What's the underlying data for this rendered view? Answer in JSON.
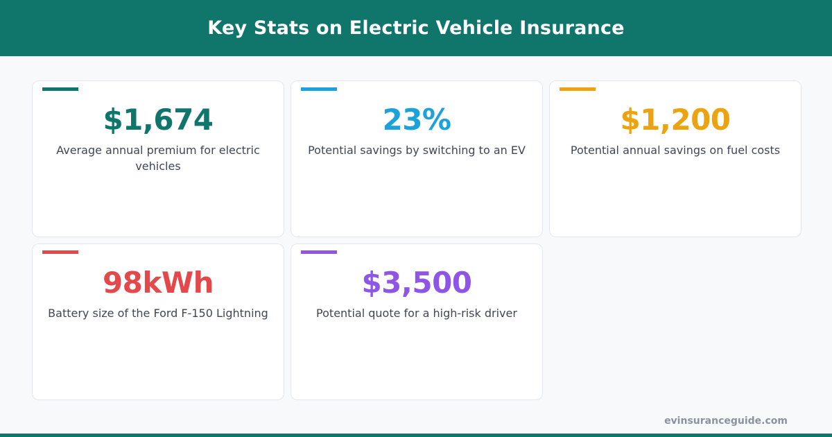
{
  "header": {
    "title": "Key Stats on Electric Vehicle Insurance"
  },
  "colors": {
    "brand": "#10756b",
    "teal": "#10756b",
    "blue": "#1ba1dc",
    "orange": "#eda30f",
    "red": "#e3494b",
    "purple": "#8e55e6"
  },
  "stats": [
    {
      "value": "$1,674",
      "description": "Average annual premium for electric vehicles",
      "color": "#10756b"
    },
    {
      "value": "23%",
      "description": "Potential savings by switching to an EV",
      "color": "#1ba1dc"
    },
    {
      "value": "$1,200",
      "description": "Potential annual savings on fuel costs",
      "color": "#eda30f"
    },
    {
      "value": "98kWh",
      "description": "Battery size of the Ford F-150 Lightning",
      "color": "#e3494b"
    },
    {
      "value": "$3,500",
      "description": "Potential quote for a high-risk driver",
      "color": "#8e55e6"
    }
  ],
  "footer": {
    "site": "evinsuranceguide.com"
  }
}
